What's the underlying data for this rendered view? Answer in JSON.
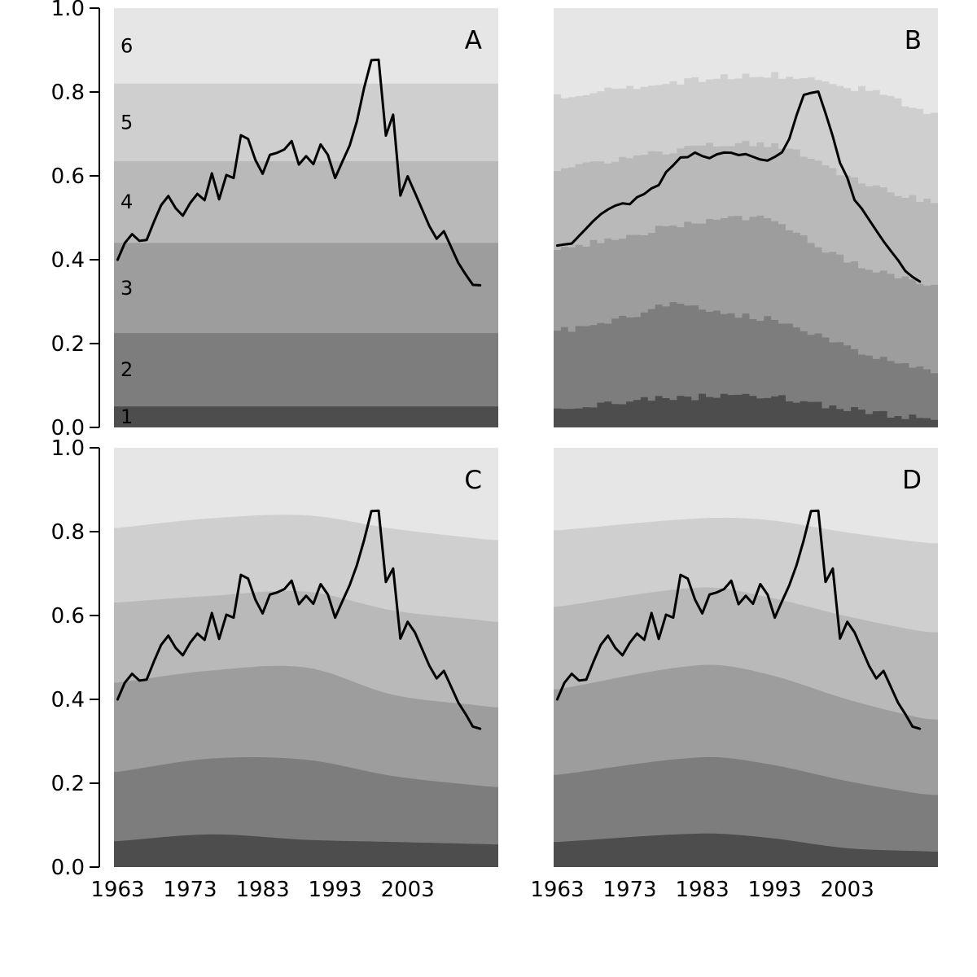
{
  "chart_data": {
    "type": "area",
    "description": "Four-panel grayscale chart: six stacked quantile bands (1-6) with an overlaid annual line, 1963 onward, y from 0.0 to 1.0. Panel A has constant bands, B yearly stepped bands with smoothed line, C and D smoothed bands with raw line.",
    "years": {
      "band_start": 1963,
      "band_end": 2015,
      "line_start": 1963,
      "line_end": 2013
    },
    "x_tick_years": [
      1963,
      1973,
      1983,
      1993,
      2003
    ],
    "x_tick_labels": [
      "1963",
      "1973",
      "1983",
      "1993",
      "2003"
    ],
    "y_ticks": [
      0.0,
      0.2,
      0.4,
      0.6,
      0.8,
      1.0
    ],
    "y_tick_labels": [
      "0.0",
      "0.2",
      "0.4",
      "0.6",
      "0.8",
      "1.0"
    ],
    "ylim": [
      0,
      1
    ],
    "grid": "off",
    "legend": "none",
    "band_labels": [
      "1",
      "2",
      "3",
      "4",
      "5",
      "6"
    ],
    "band_colors_dark_to_light": [
      "#4d4d4d",
      "#7d7d7d",
      "#9d9d9d",
      "#b9b9b9",
      "#cfcfcf",
      "#e6e6e6"
    ],
    "line_color": "#000000",
    "panels": [
      {
        "letter": "A",
        "band_style": "constant",
        "show_band_labels": true,
        "line_series": "raw",
        "boundaries": [
          0.05,
          0.225,
          0.44,
          0.635,
          0.82
        ]
      },
      {
        "letter": "B",
        "band_style": "stepped",
        "show_band_labels": false,
        "line_series": "smoothed_5yr",
        "boundary_knots": {
          "years": [
            1963,
            1969,
            1975,
            1979,
            1984,
            1989,
            1995,
            2001,
            2007,
            2013,
            2015
          ],
          "b1": [
            0.049,
            0.056,
            0.066,
            0.07,
            0.074,
            0.078,
            0.068,
            0.05,
            0.034,
            0.024,
            0.022
          ],
          "b2": [
            0.23,
            0.246,
            0.276,
            0.295,
            0.278,
            0.265,
            0.248,
            0.205,
            0.17,
            0.14,
            0.135
          ],
          "b3": [
            0.421,
            0.446,
            0.466,
            0.48,
            0.492,
            0.502,
            0.478,
            0.415,
            0.372,
            0.348,
            0.342
          ],
          "b4": [
            0.608,
            0.632,
            0.65,
            0.66,
            0.672,
            0.676,
            0.668,
            0.615,
            0.572,
            0.545,
            0.54
          ],
          "b5": [
            0.788,
            0.802,
            0.815,
            0.822,
            0.832,
            0.841,
            0.838,
            0.818,
            0.8,
            0.76,
            0.752
          ]
        }
      },
      {
        "letter": "C",
        "band_style": "smooth",
        "show_band_labels": false,
        "line_series": "raw_cd",
        "boundary_knots": {
          "years": [
            1963,
            1976,
            1989,
            2001,
            2013,
            2015
          ],
          "b1": [
            0.062,
            0.078,
            0.065,
            0.06,
            0.055,
            0.054
          ],
          "b2": [
            0.227,
            0.259,
            0.256,
            0.217,
            0.194,
            0.191
          ],
          "b3": [
            0.44,
            0.469,
            0.476,
            0.411,
            0.385,
            0.381
          ],
          "b4": [
            0.631,
            0.647,
            0.657,
            0.612,
            0.589,
            0.585
          ],
          "b5": [
            0.809,
            0.832,
            0.839,
            0.807,
            0.783,
            0.78
          ]
        }
      },
      {
        "letter": "D",
        "band_style": "smooth",
        "show_band_labels": false,
        "line_series": "raw_cd",
        "boundary_knots": {
          "years": [
            1963,
            1983,
            1992,
            2003,
            2013,
            2015
          ],
          "b1": [
            0.06,
            0.08,
            0.07,
            0.045,
            0.038,
            0.037
          ],
          "b2": [
            0.22,
            0.262,
            0.246,
            0.205,
            0.175,
            0.172
          ],
          "b3": [
            0.424,
            0.482,
            0.46,
            0.4,
            0.356,
            0.352
          ],
          "b4": [
            0.621,
            0.667,
            0.644,
            0.598,
            0.563,
            0.56
          ],
          "b5": [
            0.803,
            0.832,
            0.828,
            0.798,
            0.775,
            0.772
          ]
        }
      }
    ],
    "series": {
      "raw": [
        0.4,
        0.44,
        0.461,
        0.445,
        0.447,
        0.49,
        0.53,
        0.552,
        0.523,
        0.505,
        0.535,
        0.557,
        0.542,
        0.606,
        0.544,
        0.602,
        0.595,
        0.697,
        0.688,
        0.638,
        0.605,
        0.65,
        0.655,
        0.663,
        0.683,
        0.627,
        0.647,
        0.628,
        0.675,
        0.65,
        0.595,
        0.634,
        0.672,
        0.73,
        0.81,
        0.876,
        0.877,
        0.696,
        0.746,
        0.553,
        0.599,
        0.56,
        0.52,
        0.48,
        0.45,
        0.468,
        0.43,
        0.392,
        0.365,
        0.34,
        0.339
      ],
      "raw_cd": [
        0.4,
        0.44,
        0.461,
        0.445,
        0.447,
        0.49,
        0.53,
        0.552,
        0.523,
        0.505,
        0.535,
        0.557,
        0.542,
        0.606,
        0.544,
        0.602,
        0.595,
        0.697,
        0.688,
        0.638,
        0.605,
        0.65,
        0.655,
        0.663,
        0.683,
        0.627,
        0.647,
        0.628,
        0.675,
        0.65,
        0.595,
        0.634,
        0.672,
        0.72,
        0.78,
        0.849,
        0.85,
        0.68,
        0.712,
        0.545,
        0.585,
        0.56,
        0.52,
        0.48,
        0.45,
        0.468,
        0.43,
        0.392,
        0.365,
        0.335,
        0.33
      ],
      "smoothed_5yr": "derived: centered 5-year moving mean of raw (window truncated at ends)"
    }
  }
}
